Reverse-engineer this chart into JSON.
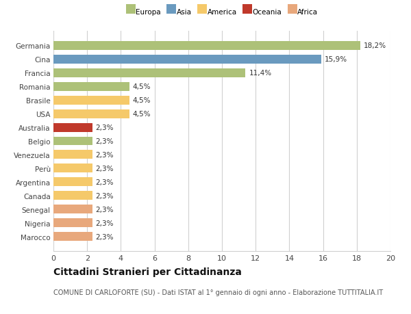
{
  "categories": [
    "Germania",
    "Cina",
    "Francia",
    "Romania",
    "Brasile",
    "USA",
    "Australia",
    "Belgio",
    "Venezuela",
    "Perù",
    "Argentina",
    "Canada",
    "Senegal",
    "Nigeria",
    "Marocco"
  ],
  "values": [
    18.2,
    15.9,
    11.4,
    4.5,
    4.5,
    4.5,
    2.3,
    2.3,
    2.3,
    2.3,
    2.3,
    2.3,
    2.3,
    2.3,
    2.3
  ],
  "labels": [
    "18,2%",
    "15,9%",
    "11,4%",
    "4,5%",
    "4,5%",
    "4,5%",
    "2,3%",
    "2,3%",
    "2,3%",
    "2,3%",
    "2,3%",
    "2,3%",
    "2,3%",
    "2,3%",
    "2,3%"
  ],
  "colors": [
    "#adc178",
    "#6a9abf",
    "#adc178",
    "#adc178",
    "#f5c96a",
    "#f5c96a",
    "#c0392b",
    "#adc178",
    "#f5c96a",
    "#f5c96a",
    "#f5c96a",
    "#f5c96a",
    "#e8a87c",
    "#e8a87c",
    "#e8a87c"
  ],
  "legend_labels": [
    "Europa",
    "Asia",
    "America",
    "Oceania",
    "Africa"
  ],
  "legend_colors": [
    "#adc178",
    "#6a9abf",
    "#f5c96a",
    "#c0392b",
    "#e8a87c"
  ],
  "title": "Cittadini Stranieri per Cittadinanza",
  "subtitle": "COMUNE DI CARLOFORTE (SU) - Dati ISTAT al 1° gennaio di ogni anno - Elaborazione TUTTITALIA.IT",
  "xlim": [
    0,
    20
  ],
  "xticks": [
    0,
    2,
    4,
    6,
    8,
    10,
    12,
    14,
    16,
    18,
    20
  ],
  "background_color": "#ffffff",
  "grid_color": "#d0d0d0",
  "bar_height": 0.65,
  "label_fontsize": 7.5,
  "tick_fontsize": 8,
  "title_fontsize": 10,
  "subtitle_fontsize": 7
}
